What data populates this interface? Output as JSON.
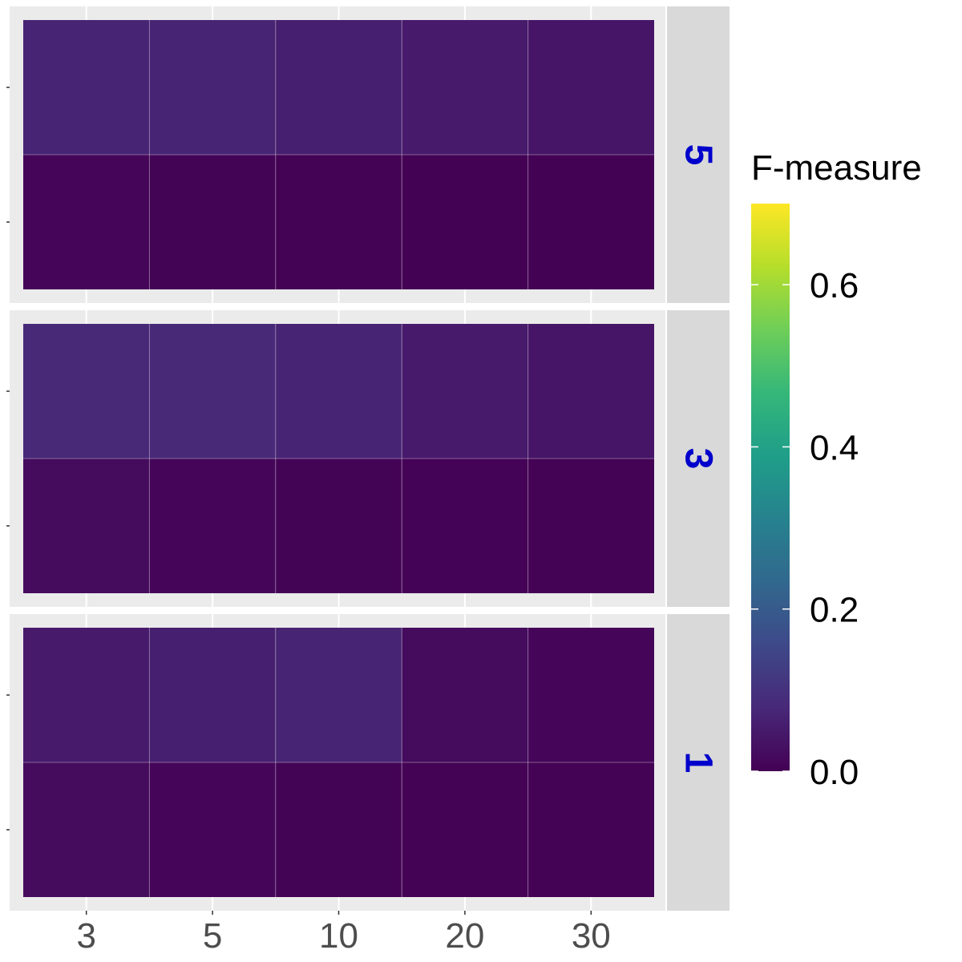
{
  "chart_data": {
    "type": "heatmap",
    "x_categories": [
      "3",
      "5",
      "10",
      "20",
      "30"
    ],
    "rows_per_panel": 2,
    "facets": [
      {
        "label": "5",
        "values": [
          [
            0.07,
            0.07,
            0.06,
            0.05,
            0.04
          ],
          [
            0.01,
            0.005,
            0.003,
            0.002,
            0.002
          ]
        ]
      },
      {
        "label": "3",
        "values": [
          [
            0.08,
            0.08,
            0.07,
            0.05,
            0.04
          ],
          [
            0.02,
            0.01,
            0.005,
            0.004,
            0.003
          ]
        ]
      },
      {
        "label": "1",
        "values": [
          [
            0.05,
            0.06,
            0.07,
            0.02,
            0.01
          ],
          [
            0.02,
            0.01,
            0.005,
            0.003,
            0.003
          ]
        ]
      }
    ],
    "legend": {
      "title": "F-measure",
      "min": 0.0,
      "max": 0.7,
      "ticks": [
        {
          "value": 0.0,
          "label": "0.0"
        },
        {
          "value": 0.2,
          "label": "0.2"
        },
        {
          "value": 0.4,
          "label": "0.4"
        },
        {
          "value": 0.6,
          "label": "0.6"
        }
      ],
      "placement": "right"
    },
    "colormap": [
      "#440154",
      "#482878",
      "#3e4989",
      "#31688e",
      "#26828e",
      "#1f9e89",
      "#35b779",
      "#6ece58",
      "#b5de2b",
      "#fde725"
    ],
    "colors": {
      "panel_background": "#ebebeb",
      "strip_background": "#d9d9d9",
      "strip_text": "#0000cc",
      "gridline": "#ffffff",
      "tick_text": "#4d4d4d"
    }
  }
}
